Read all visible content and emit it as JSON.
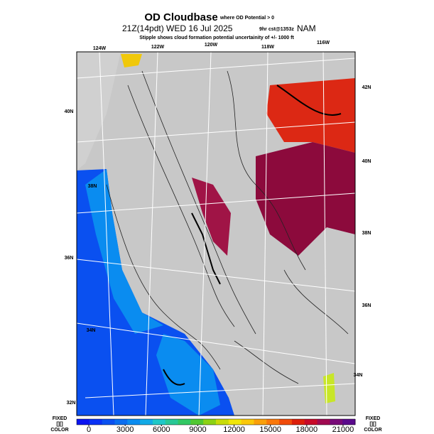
{
  "header": {
    "title": "OD Cloudbase",
    "title_note": "where OD Potential > 0",
    "valid_time": "21Z(14pdt) WED 16 Jul 2025",
    "forecast": "9hr cst@1353z",
    "model": "NAM",
    "subtitle": "Stipple shows cloud formation potential uncertainity of +/- 1000 ft"
  },
  "map": {
    "longitude_labels": [
      "124W",
      "122W",
      "120W",
      "118W",
      "116W"
    ],
    "latitude_labels_left": [
      "40N",
      "38N",
      "36N",
      "34N",
      "32N"
    ],
    "latitude_labels_right": [
      "42N",
      "40N",
      "38N",
      "36N",
      "34N"
    ]
  },
  "colorbar": {
    "range": [
      -1000,
      22000
    ],
    "ticks": [
      0,
      3000,
      6000,
      9000,
      12000,
      15000,
      18000,
      21000
    ],
    "colors": [
      "#0a14f0",
      "#0a32f5",
      "#0a50f0",
      "#0a6ef0",
      "#0a8cf0",
      "#12aae6",
      "#1ec8c8",
      "#28c896",
      "#32c864",
      "#50c832",
      "#8cd214",
      "#c8dc0a",
      "#f0e60a",
      "#fac80a",
      "#faa00a",
      "#fa780a",
      "#f04b0a",
      "#dc1e0a",
      "#c80a28",
      "#a00a50",
      "#780a78",
      "#5a0a8c"
    ],
    "left_label": [
      "FIXED",
      "[][]",
      "COLOR"
    ],
    "right_label": [
      "FIXED",
      "[][]",
      "COLOR"
    ]
  }
}
